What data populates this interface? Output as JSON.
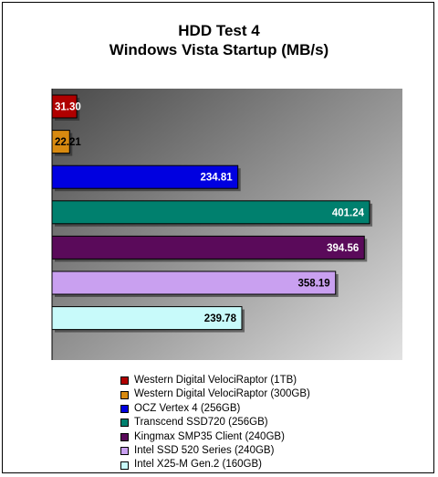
{
  "chart_data": {
    "type": "bar",
    "orientation": "horizontal",
    "title": "HDD Test 4",
    "subtitle": "Windows Vista Startup (MB/s)",
    "categories": [
      "Western Digital VelociRaptor (1TB)",
      "Western Digital VelociRaptor (300GB)",
      "OCZ Vertex 4 (256GB)",
      "Transcend SSD720 (256GB)",
      "Kingmax SMP35 Client (240GB)",
      "Intel SSD 520 Series (240GB)",
      "Intel X25-M Gen.2 (160GB)"
    ],
    "values": [
      31.3,
      22.21,
      234.81,
      401.24,
      394.56,
      358.19,
      239.78
    ],
    "value_labels": [
      "31.30",
      "22.21",
      "234.81",
      "401.24",
      "394.56",
      "358.19",
      "239.78"
    ],
    "colors": [
      "#b00000",
      "#d88a10",
      "#0000e0",
      "#00806e",
      "#5a0a5a",
      "#c9a0f0",
      "#c8fafa"
    ],
    "label_colors": [
      "#ffffff",
      "#000000",
      "#ffffff",
      "#ffffff",
      "#ffffff",
      "#000000",
      "#000000"
    ],
    "xlim": [
      0,
      430
    ],
    "grid": false,
    "legend_position": "bottom",
    "plot_background": "gradient-dark-to-light-gray"
  }
}
